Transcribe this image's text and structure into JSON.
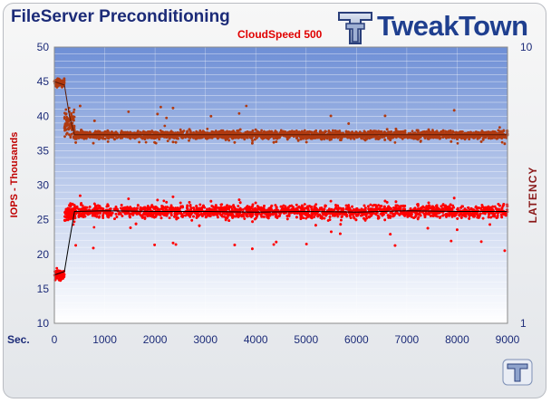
{
  "header": {
    "title": "FileServer Preconditioning",
    "subtitle": "CloudSpeed 500",
    "brand": "TweakTown"
  },
  "colors": {
    "iops_series": "#ff0000",
    "latency_series": "#b03a10",
    "title": "#1c2b78",
    "brand": "#1f3f8f"
  },
  "chart_data": {
    "type": "scatter",
    "title": "FileServer Preconditioning",
    "subtitle": "CloudSpeed 500",
    "xlabel": "Sec.",
    "ylabel": "IOPS - Thousands",
    "y2label": "LATENCY",
    "xlim": [
      0,
      9000
    ],
    "ylim": [
      10,
      50
    ],
    "y2lim": [
      1,
      10
    ],
    "y2_scale": "log",
    "x_ticks": [
      0,
      1000,
      2000,
      3000,
      4000,
      5000,
      6000,
      7000,
      8000,
      9000
    ],
    "y_ticks": [
      10,
      15,
      20,
      25,
      30,
      35,
      40,
      45,
      50
    ],
    "y2_ticks": [
      1,
      10
    ],
    "grid": true,
    "series": [
      {
        "axis": "left",
        "color": "#ff0000",
        "description": "IOPS (thousands)",
        "phases": [
          {
            "x_start": 0,
            "x_end": 200,
            "center": 17.0,
            "spread": 0.8
          },
          {
            "x_start": 200,
            "x_end": 400,
            "center": 26.0,
            "spread": 1.5
          },
          {
            "x_start": 400,
            "x_end": 9000,
            "center": 26.2,
            "spread": 1.0,
            "outlier_low": 20.5,
            "outlier_high": 28.5
          }
        ],
        "trend": [
          [
            0,
            17
          ],
          [
            200,
            17.5
          ],
          [
            300,
            22
          ],
          [
            400,
            26.2
          ],
          [
            1000,
            26.3
          ],
          [
            2000,
            26.2
          ],
          [
            3000,
            26.2
          ],
          [
            4000,
            26.1
          ],
          [
            5000,
            26.2
          ],
          [
            6000,
            26.1
          ],
          [
            7000,
            26.3
          ],
          [
            8000,
            26.2
          ],
          [
            9000,
            26.2
          ]
        ]
      },
      {
        "axis": "right",
        "color": "#b03a10",
        "description": "Latency",
        "phases": [
          {
            "x_start": 0,
            "x_end": 200,
            "center": 44.8,
            "spread": 0.6
          },
          {
            "x_start": 200,
            "x_end": 400,
            "center": 39.0,
            "spread": 2.0
          },
          {
            "x_start": 400,
            "x_end": 9000,
            "center": 37.3,
            "spread": 0.6,
            "outlier_low": 36.0,
            "outlier_high": 41.5
          }
        ],
        "trend": [
          [
            0,
            45
          ],
          [
            200,
            44.5
          ],
          [
            300,
            40
          ],
          [
            400,
            37.3
          ],
          [
            9000,
            37.3
          ]
        ]
      }
    ]
  }
}
